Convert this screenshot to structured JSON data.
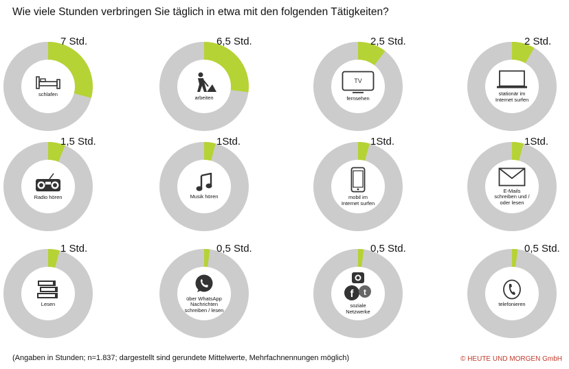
{
  "title": "Wie viele Stunden verbringen Sie täglich in etwa mit den folgenden Tätigkeiten?",
  "footer": "(Angaben in Stunden; n=1.837; dargestellt sind gerundete Mittelwerte, Mehrfachnennungen möglich)",
  "copyright": "© HEUTE UND MORGEN GmbH",
  "colors": {
    "accent": "#b5d334",
    "ring": "#cccccc",
    "hole": "#ffffff",
    "copyright": "#c0392b"
  },
  "chart_data": {
    "type": "pie",
    "title": "Wie viele Stunden verbringen Sie täglich in etwa mit den folgenden Tätigkeiten?",
    "unit": "Std.",
    "total_hours": 24,
    "items": [
      {
        "label": "schlafen",
        "value": 7,
        "value_label": "7 Std.",
        "icon": "bed-icon"
      },
      {
        "label": "arbeiten",
        "value": 6.5,
        "value_label": "6,5 Std.",
        "icon": "worker-icon"
      },
      {
        "label": "fernsehen",
        "value": 2.5,
        "value_label": "2,5 Std.",
        "icon": "tv-icon"
      },
      {
        "label": "stationär im Internet surfen",
        "value": 2,
        "value_label": "2 Std.",
        "icon": "laptop-icon"
      },
      {
        "label": "Radio hören",
        "value": 1.5,
        "value_label": "1,5 Std.",
        "icon": "radio-icon"
      },
      {
        "label": "Musik hören",
        "value": 1,
        "value_label": "1Std.",
        "icon": "music-note-icon"
      },
      {
        "label": "mobil im Internet surfen",
        "value": 1,
        "value_label": "1Std.",
        "icon": "smartphone-icon"
      },
      {
        "label": "E-Mails schreiben und / oder lesen",
        "value": 1,
        "value_label": "1Std.",
        "icon": "envelope-icon"
      },
      {
        "label": "Lesen",
        "value": 1,
        "value_label": "1 Std.",
        "icon": "books-icon"
      },
      {
        "label": "über WhatsApp Nachrichten schreiben / lesen",
        "value": 0.5,
        "value_label": "0,5 Std.",
        "icon": "whatsapp-icon"
      },
      {
        "label": "soziale Netzwerke",
        "value": 0.5,
        "value_label": "0,5 Std.",
        "icon": "social-networks-icon"
      },
      {
        "label": "telefonieren",
        "value": 0.5,
        "value_label": "0,5 Std.",
        "icon": "phone-icon"
      }
    ]
  },
  "labels_display": [
    [
      "schlafen"
    ],
    [
      "arbeiten"
    ],
    [
      "fernsehen"
    ],
    [
      "stationär im",
      "Internet surfen"
    ],
    [
      "Radio hören"
    ],
    [
      "Musik hören"
    ],
    [
      "mobil im",
      "Internet surfen"
    ],
    [
      "E-Mails",
      "schreiben und /",
      "oder lesen"
    ],
    [
      "Lesen"
    ],
    [
      "über WhatsApp",
      "Nachrichten",
      "schreiben / lesen"
    ],
    [
      "soziale",
      "Netzwerke"
    ],
    [
      "telefonieren"
    ]
  ]
}
